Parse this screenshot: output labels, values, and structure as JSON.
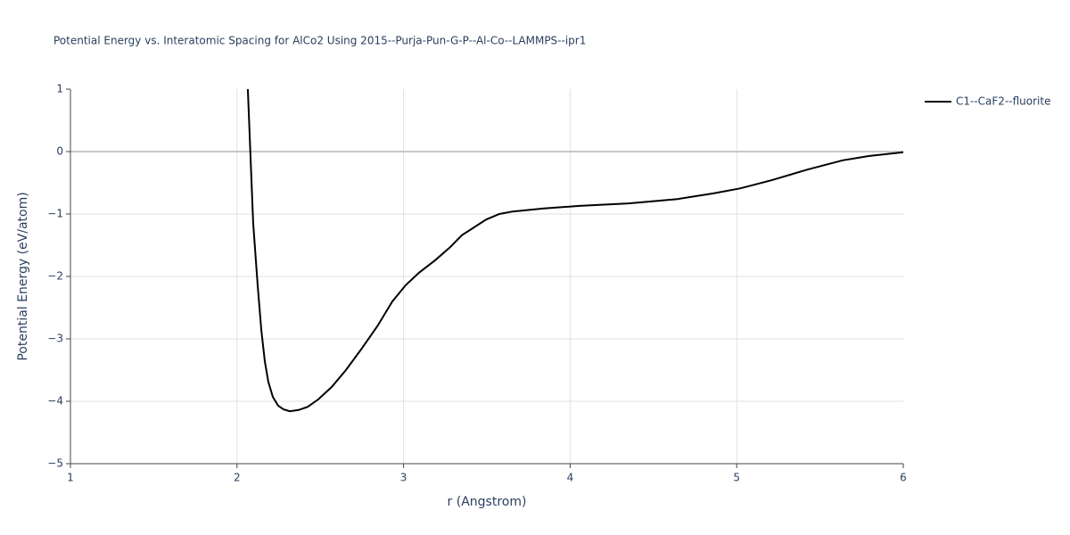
{
  "chart_data": {
    "type": "line",
    "title": "Potential Energy vs. Interatomic Spacing for AlCo2 Using 2015--Purja-Pun-G-P--Al-Co--LAMMPS--ipr1",
    "x_label": "r (Angstrom)",
    "y_label": "Potential Energy (eV/atom)",
    "x": [
      2.065,
      2.097,
      2.124,
      2.146,
      2.167,
      2.188,
      2.215,
      2.247,
      2.279,
      2.317,
      2.37,
      2.424,
      2.488,
      2.569,
      2.654,
      2.745,
      2.842,
      2.933,
      3.013,
      3.093,
      3.19,
      3.28,
      3.35,
      3.414,
      3.495,
      3.575,
      3.655,
      3.843,
      4.057,
      4.351,
      4.646,
      4.86,
      5.02,
      5.208,
      5.422,
      5.636,
      5.797,
      6.0
    ],
    "series": [
      {
        "name": "C1--CaF2--fluorite",
        "color": "#000000",
        "values": [
          1.0,
          -1.14,
          -2.14,
          -2.86,
          -3.36,
          -3.69,
          -3.93,
          -4.07,
          -4.13,
          -4.16,
          -4.14,
          -4.09,
          -3.97,
          -3.77,
          -3.5,
          -3.17,
          -2.8,
          -2.4,
          -2.14,
          -1.94,
          -1.74,
          -1.53,
          -1.34,
          -1.23,
          -1.09,
          -1.0,
          -0.96,
          -0.91,
          -0.87,
          -0.83,
          -0.76,
          -0.67,
          -0.59,
          -0.46,
          -0.29,
          -0.14,
          -0.07,
          -0.01
        ]
      }
    ],
    "xlim": [
      1,
      6
    ],
    "ylim": [
      -5,
      1
    ],
    "xticks": [
      1,
      2,
      3,
      4,
      5,
      6
    ],
    "yticks": [
      {
        "value": -5,
        "label": "−5"
      },
      {
        "value": -4,
        "label": "−4"
      },
      {
        "value": -3,
        "label": "−3"
      },
      {
        "value": -2,
        "label": "−2"
      },
      {
        "value": -1,
        "label": "−1"
      },
      0,
      1
    ],
    "grid": true,
    "legend": "right"
  }
}
